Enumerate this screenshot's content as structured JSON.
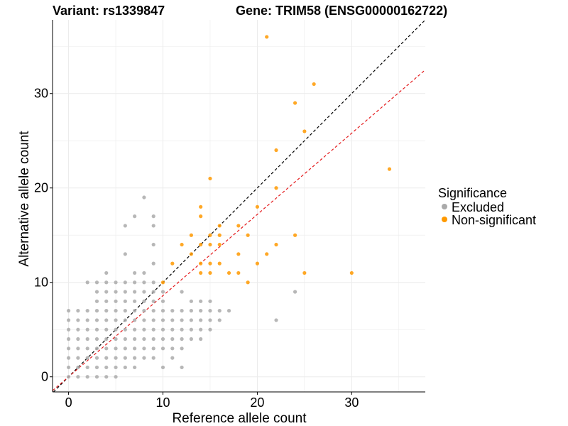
{
  "chart_data": {
    "type": "scatter",
    "title_left": "Variant: rs1339847",
    "title_right": "Gene: TRIM58 (ENSG00000162722)",
    "xlabel": "Reference allele count",
    "ylabel": "Alternative allele count",
    "xlim": [
      -1.7,
      37.8
    ],
    "ylim": [
      -1.6,
      37.8
    ],
    "xticks": [
      0,
      10,
      20,
      30
    ],
    "yticks": [
      0,
      10,
      20,
      30
    ],
    "grid": true,
    "legend": {
      "title": "Significance",
      "position": "right",
      "entries": [
        "Excluded",
        "Non-significant"
      ]
    },
    "reference_lines": [
      {
        "name": "y = x",
        "slope": 1.0,
        "intercept": 0,
        "color": "#000000",
        "dash": "dashed"
      },
      {
        "name": "fit",
        "slope": 0.86,
        "intercept": 0,
        "color": "#e41a1c",
        "dash": "dashed"
      }
    ],
    "series": [
      {
        "name": "Excluded",
        "color": "#aaaaaa",
        "points": [
          [
            0,
            0
          ],
          [
            0,
            1
          ],
          [
            0,
            2
          ],
          [
            0,
            3
          ],
          [
            0,
            4
          ],
          [
            0,
            5
          ],
          [
            0,
            6
          ],
          [
            0,
            7
          ],
          [
            1,
            0
          ],
          [
            1,
            1
          ],
          [
            1,
            2
          ],
          [
            1,
            3
          ],
          [
            1,
            4
          ],
          [
            1,
            5
          ],
          [
            1,
            6
          ],
          [
            1,
            7
          ],
          [
            2,
            0
          ],
          [
            2,
            1
          ],
          [
            2,
            2
          ],
          [
            2,
            3
          ],
          [
            2,
            4
          ],
          [
            2,
            5
          ],
          [
            2,
            6
          ],
          [
            2,
            7
          ],
          [
            2,
            10
          ],
          [
            3,
            0
          ],
          [
            3,
            1
          ],
          [
            3,
            2
          ],
          [
            3,
            3
          ],
          [
            3,
            4
          ],
          [
            3,
            5
          ],
          [
            3,
            6
          ],
          [
            3,
            7
          ],
          [
            3,
            8
          ],
          [
            3,
            9
          ],
          [
            3,
            10
          ],
          [
            4,
            0
          ],
          [
            4,
            1
          ],
          [
            4,
            2
          ],
          [
            4,
            3
          ],
          [
            4,
            4
          ],
          [
            4,
            5
          ],
          [
            4,
            6
          ],
          [
            4,
            7
          ],
          [
            4,
            8
          ],
          [
            4,
            9
          ],
          [
            4,
            10
          ],
          [
            4,
            11
          ],
          [
            5,
            0
          ],
          [
            5,
            1
          ],
          [
            5,
            2
          ],
          [
            5,
            3
          ],
          [
            5,
            4
          ],
          [
            5,
            5
          ],
          [
            5,
            6
          ],
          [
            5,
            7
          ],
          [
            5,
            8
          ],
          [
            5,
            9
          ],
          [
            5,
            10
          ],
          [
            6,
            1
          ],
          [
            6,
            2
          ],
          [
            6,
            3
          ],
          [
            6,
            4
          ],
          [
            6,
            5
          ],
          [
            6,
            6
          ],
          [
            6,
            7
          ],
          [
            6,
            8
          ],
          [
            6,
            9
          ],
          [
            6,
            10
          ],
          [
            6,
            13
          ],
          [
            6,
            16
          ],
          [
            7,
            1
          ],
          [
            7,
            2
          ],
          [
            7,
            3
          ],
          [
            7,
            4
          ],
          [
            7,
            5
          ],
          [
            7,
            6
          ],
          [
            7,
            7
          ],
          [
            7,
            8
          ],
          [
            7,
            9
          ],
          [
            7,
            10
          ],
          [
            7,
            11
          ],
          [
            7,
            17
          ],
          [
            8,
            2
          ],
          [
            8,
            3
          ],
          [
            8,
            4
          ],
          [
            8,
            5
          ],
          [
            8,
            6
          ],
          [
            8,
            7
          ],
          [
            8,
            8
          ],
          [
            8,
            9
          ],
          [
            8,
            10
          ],
          [
            8,
            11
          ],
          [
            8,
            19
          ],
          [
            9,
            2
          ],
          [
            9,
            3
          ],
          [
            9,
            4
          ],
          [
            9,
            5
          ],
          [
            9,
            6
          ],
          [
            9,
            7
          ],
          [
            9,
            8
          ],
          [
            9,
            9
          ],
          [
            9,
            10
          ],
          [
            9,
            12
          ],
          [
            9,
            14
          ],
          [
            9,
            16
          ],
          [
            9,
            17
          ],
          [
            10,
            1
          ],
          [
            10,
            3
          ],
          [
            10,
            4
          ],
          [
            10,
            5
          ],
          [
            10,
            6
          ],
          [
            10,
            7
          ],
          [
            10,
            8
          ],
          [
            10,
            9
          ],
          [
            11,
            2
          ],
          [
            11,
            3
          ],
          [
            11,
            4
          ],
          [
            11,
            5
          ],
          [
            11,
            6
          ],
          [
            11,
            7
          ],
          [
            12,
            1
          ],
          [
            12,
            3
          ],
          [
            12,
            4
          ],
          [
            12,
            5
          ],
          [
            12,
            6
          ],
          [
            12,
            7
          ],
          [
            12,
            9
          ],
          [
            13,
            4
          ],
          [
            13,
            5
          ],
          [
            13,
            6
          ],
          [
            13,
            7
          ],
          [
            13,
            8
          ],
          [
            14,
            4
          ],
          [
            14,
            5
          ],
          [
            14,
            6
          ],
          [
            14,
            7
          ],
          [
            14,
            8
          ],
          [
            15,
            5
          ],
          [
            15,
            6
          ],
          [
            15,
            7
          ],
          [
            15,
            8
          ],
          [
            16,
            6
          ],
          [
            16,
            7
          ],
          [
            17,
            7
          ],
          [
            22,
            6
          ],
          [
            24,
            9
          ]
        ]
      },
      {
        "name": "Non-significant",
        "color": "#ff9900",
        "points": [
          [
            10,
            10
          ],
          [
            11,
            12
          ],
          [
            12,
            14
          ],
          [
            13,
            13
          ],
          [
            13,
            15
          ],
          [
            14,
            11
          ],
          [
            14,
            12
          ],
          [
            14,
            14
          ],
          [
            14,
            17
          ],
          [
            14,
            18
          ],
          [
            15,
            11
          ],
          [
            15,
            12
          ],
          [
            15,
            14
          ],
          [
            15,
            15
          ],
          [
            15,
            21
          ],
          [
            16,
            12
          ],
          [
            16,
            14
          ],
          [
            16,
            15
          ],
          [
            16,
            16
          ],
          [
            17,
            11
          ],
          [
            18,
            11
          ],
          [
            18,
            13
          ],
          [
            18,
            16
          ],
          [
            19,
            10
          ],
          [
            19,
            15
          ],
          [
            20,
            12
          ],
          [
            20,
            18
          ],
          [
            21,
            13
          ],
          [
            21,
            36
          ],
          [
            22,
            14
          ],
          [
            22,
            20
          ],
          [
            22,
            24
          ],
          [
            24,
            15
          ],
          [
            24,
            29
          ],
          [
            25,
            11
          ],
          [
            25,
            26
          ],
          [
            26,
            31
          ],
          [
            30,
            11
          ],
          [
            34,
            22
          ]
        ]
      }
    ]
  }
}
